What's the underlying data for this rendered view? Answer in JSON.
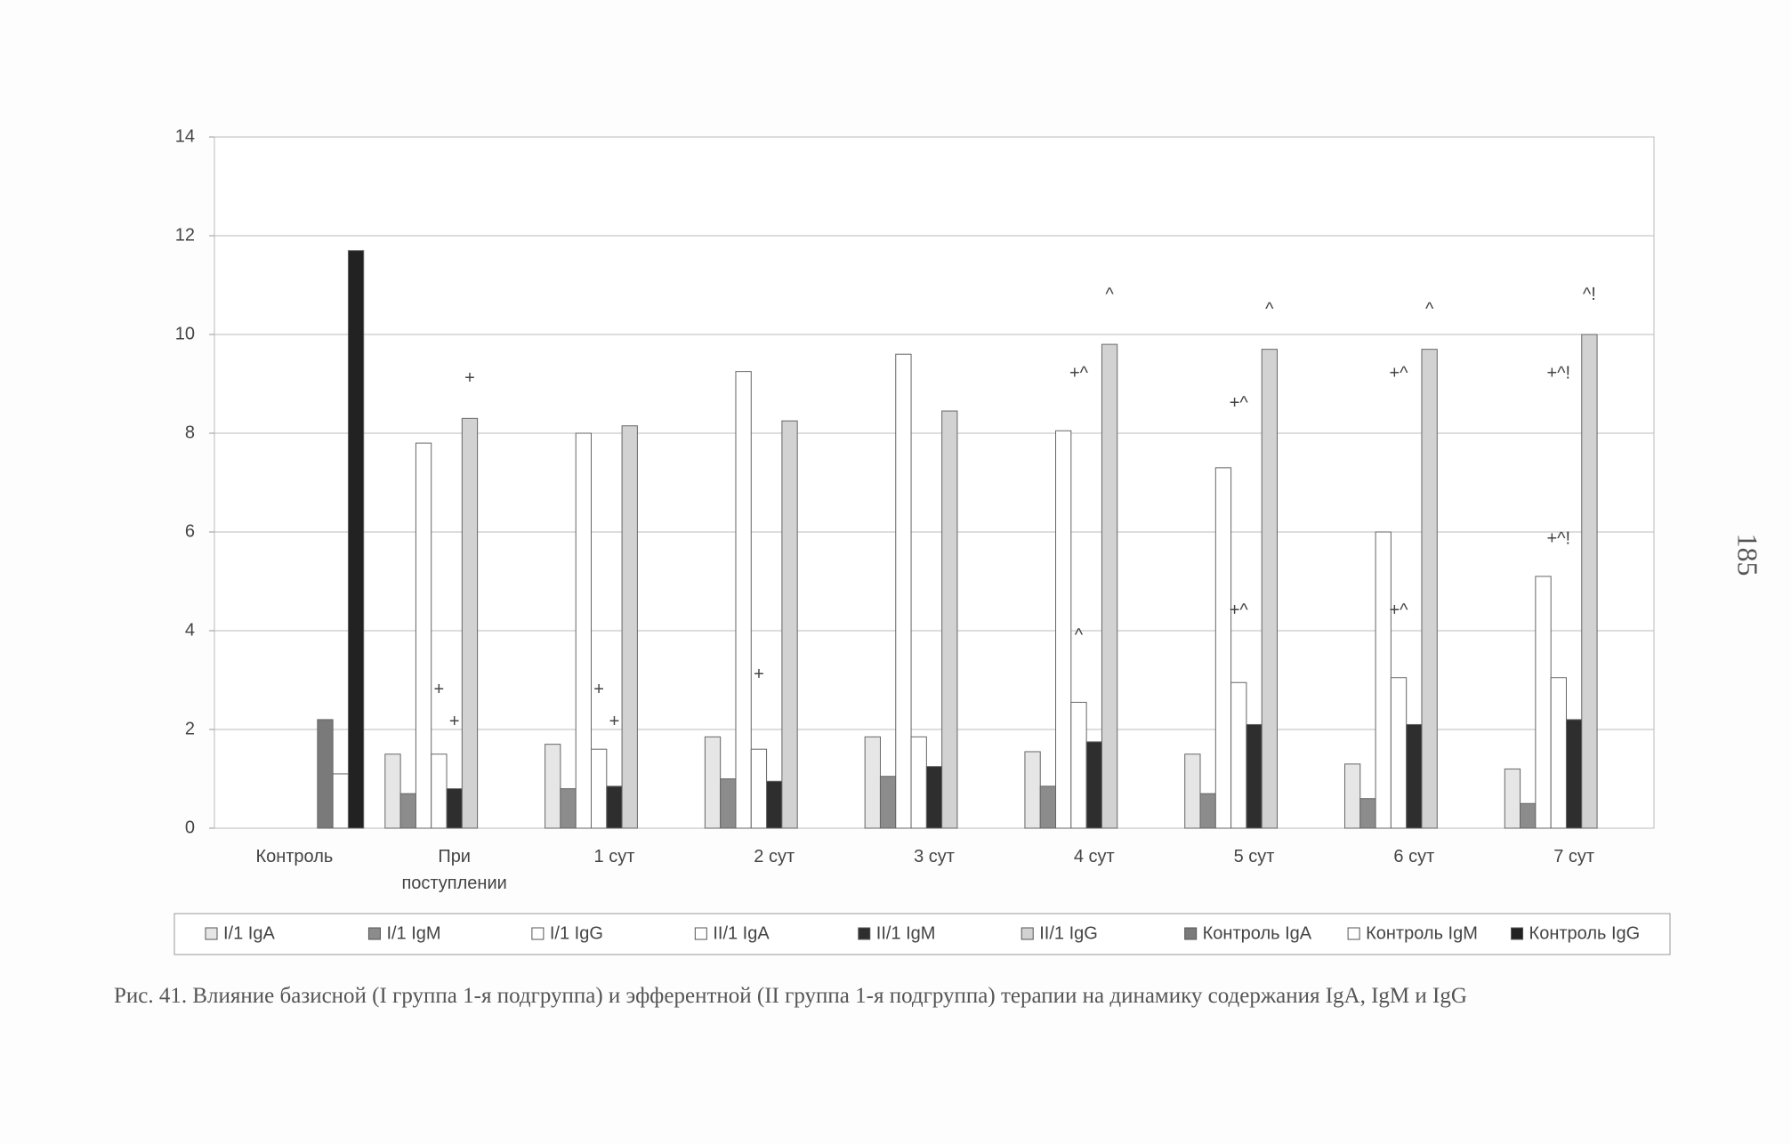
{
  "chart_data": {
    "type": "bar",
    "categories": [
      "Контроль",
      "При поступлении",
      "1 сут",
      "2 сут",
      "3 сут",
      "4 сут",
      "5 сут",
      "6 сут",
      "7 сут"
    ],
    "series": [
      {
        "name": "I/1 IgA",
        "color": "#e6e6e6",
        "values": [
          null,
          1.5,
          1.7,
          1.85,
          1.85,
          1.55,
          1.5,
          1.3,
          1.2
        ]
      },
      {
        "name": "I/1 IgM",
        "color": "#8c8c8c",
        "values": [
          null,
          0.7,
          0.8,
          1.0,
          1.05,
          0.85,
          0.7,
          0.6,
          0.5
        ]
      },
      {
        "name": "I/1 IgG",
        "color": "#ffffff",
        "values": [
          null,
          7.8,
          8.0,
          9.25,
          9.6,
          8.05,
          7.3,
          6.0,
          5.1
        ]
      },
      {
        "name": "II/1 IgA",
        "color": "#ffffff",
        "values": [
          null,
          1.5,
          1.6,
          1.6,
          1.85,
          2.55,
          2.95,
          3.05,
          3.05
        ]
      },
      {
        "name": "II/1 IgM",
        "color": "#2e2e2e",
        "values": [
          null,
          0.8,
          0.85,
          0.95,
          1.25,
          1.75,
          2.1,
          2.1,
          2.2
        ]
      },
      {
        "name": "II/1 IgG",
        "color": "#d2d2d2",
        "values": [
          null,
          8.3,
          8.15,
          8.25,
          8.45,
          9.8,
          9.7,
          9.7,
          10.0
        ]
      },
      {
        "name": "Контроль IgA",
        "color": "#7a7a7a",
        "values": [
          2.2,
          null,
          null,
          null,
          null,
          null,
          null,
          null,
          null
        ]
      },
      {
        "name": "Контроль IgM",
        "color": "#ffffff",
        "values": [
          1.1,
          null,
          null,
          null,
          null,
          null,
          null,
          null,
          null
        ]
      },
      {
        "name": "Контроль IgG",
        "color": "#222222",
        "values": [
          11.7,
          null,
          null,
          null,
          null,
          null,
          null,
          null,
          null
        ]
      }
    ],
    "annotations": [
      {
        "text": "+",
        "category": "При поступлении",
        "series": "II/1 IgG",
        "y": 9.1
      },
      {
        "text": "+",
        "category": "При поступлении",
        "series": "II/1 IgA",
        "y": 2.8
      },
      {
        "text": "+",
        "category": "При поступлении",
        "series": "II/1 IgM",
        "y": 2.15
      },
      {
        "text": "+",
        "category": "1 сут",
        "series": "II/1 IgA",
        "y": 2.8
      },
      {
        "text": "+",
        "category": "1 сут",
        "series": "II/1 IgM",
        "y": 2.15
      },
      {
        "text": "+",
        "category": "2 сут",
        "series": "II/1 IgA",
        "y": 3.1
      },
      {
        "text": "^",
        "category": "4 сут",
        "series": "II/1 IgG",
        "y": 10.8
      },
      {
        "text": "+^",
        "category": "4 сут",
        "series": "II/1 IgA",
        "y": 9.2
      },
      {
        "text": "^",
        "category": "4 сут",
        "series": "II/1 IgA",
        "y": 3.9
      },
      {
        "text": "^",
        "category": "5 сут",
        "series": "II/1 IgG",
        "y": 10.5
      },
      {
        "text": "+^",
        "category": "5 сут",
        "series": "II/1 IgA",
        "y": 8.6
      },
      {
        "text": "+^",
        "category": "5 сут",
        "series": "II/1 IgA",
        "y": 4.4
      },
      {
        "text": "^",
        "category": "6 сут",
        "series": "II/1 IgG",
        "y": 10.5
      },
      {
        "text": "+^",
        "category": "6 сут",
        "series": "II/1 IgA",
        "y": 9.2
      },
      {
        "text": "+^",
        "category": "6 сут",
        "series": "II/1 IgA",
        "y": 4.4
      },
      {
        "text": "^!",
        "category": "7 сут",
        "series": "II/1 IgG",
        "y": 10.8
      },
      {
        "text": "+^!",
        "category": "7 сут",
        "series": "II/1 IgA",
        "y": 9.2
      },
      {
        "text": "+^!",
        "category": "7 сут",
        "series": "II/1 IgA",
        "y": 5.85
      }
    ],
    "ylim": [
      0,
      14
    ],
    "yticks": [
      0,
      2,
      4,
      6,
      8,
      10,
      12,
      14
    ],
    "grid": true,
    "legend": "bottom"
  },
  "caption": "Рис. 41. Влияние базисной (I группа 1-я подгруппа) и эфферентной (II группа 1-я подгруппа) терапии на динамику содержания IgA, IgM и IgG",
  "page_number": "185"
}
